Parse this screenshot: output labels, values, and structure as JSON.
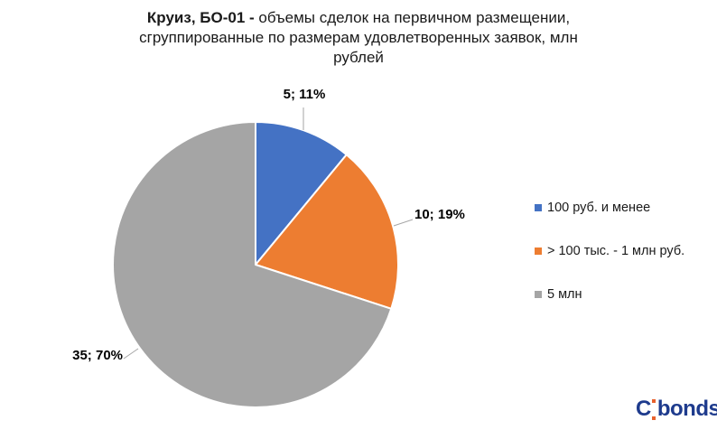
{
  "title": {
    "bold_prefix": "Круиз, БО-01 -",
    "line1_rest": " объемы сделок на первичном размещении,",
    "line2": "сгруппированные по размерам удовлетворенных заявок, млн",
    "line3": "рублей",
    "full": "Круиз, БО-01 - объемы сделок на первичном размещении, сгруппированные по размерам удовлетворенных заявок, млн рублей"
  },
  "chart_data": {
    "type": "pie",
    "title": "Круиз, БО-01 - объемы сделок на первичном размещении, сгруппированные по размерам удовлетворенных заявок, млн рублей",
    "unit": "млн рублей",
    "legend_position": "right",
    "start_angle_deg": 0,
    "direction": "clockwise",
    "grid": false,
    "slices": [
      {
        "legend": "100 руб. и менее",
        "value": 5,
        "percent": 11,
        "data_label": "5; 11%",
        "color": "#4472C4"
      },
      {
        "legend": "> 100 тыс. - 1 млн руб.",
        "value": 10,
        "percent": 19,
        "data_label": "10; 19%",
        "color": "#ED7D31"
      },
      {
        "legend": "5 млн",
        "value": 35,
        "percent": 70,
        "data_label": "35; 70%",
        "color": "#A5A5A5"
      }
    ]
  },
  "footer": {
    "logo_text": "Cbonds"
  }
}
